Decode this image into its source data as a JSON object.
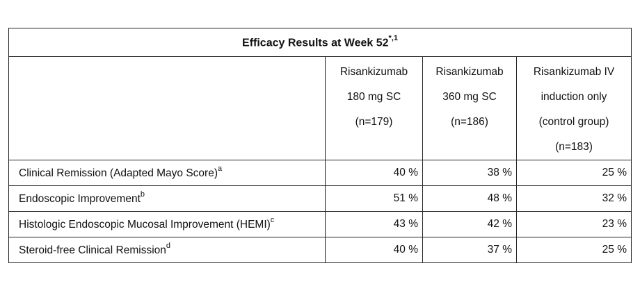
{
  "table": {
    "title": "Efficacy Results at Week 52",
    "title_sup": "*,1",
    "columns": [
      {
        "lines": [
          "Risankizumab",
          "180 mg SC",
          "(n=179)"
        ]
      },
      {
        "lines": [
          "Risankizumab",
          "360 mg SC",
          "(n=186)"
        ]
      },
      {
        "lines": [
          "Risankizumab IV",
          "induction only",
          "(control group)",
          "(n=183)"
        ]
      }
    ],
    "rows": [
      {
        "label": "Clinical Remission (Adapted Mayo Score)",
        "sup": "a",
        "values": [
          "40 %",
          "38 %",
          "25 %"
        ]
      },
      {
        "label": "Endoscopic Improvement",
        "sup": "b",
        "values": [
          "51 %",
          "48 %",
          "32 %"
        ]
      },
      {
        "label": "Histologic Endoscopic Mucosal Improvement (HEMI)",
        "sup": "c",
        "values": [
          "43 %",
          "42 %",
          "23 %"
        ]
      },
      {
        "label": "Steroid-free Clinical Remission",
        "sup": "d",
        "values": [
          "40 %",
          "37 %",
          "25 %"
        ]
      }
    ]
  }
}
